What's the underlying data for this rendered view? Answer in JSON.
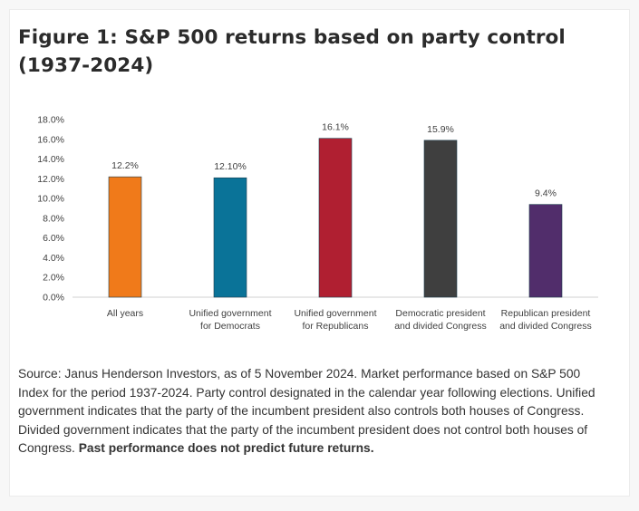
{
  "figure": {
    "title": "Figure 1: S&P 500 returns based on party control (1937-2024)",
    "source_text": "Source: Janus Henderson Investors, as of 5 November 2024. Market performance based on S&P 500 Index for the period 1937-2024. Party control designated in the calendar year following elections. Unified government indicates that the party of the incumbent president also controls both houses of Congress. Divided government indicates that the party of the incumbent president does not control both houses of Congress.",
    "source_emphasis": "Past performance does not predict future returns."
  },
  "chart_data": {
    "type": "bar",
    "categories": [
      [
        "All years"
      ],
      [
        "Unified government",
        "for Democrats"
      ],
      [
        "Unified government",
        "for Republicans"
      ],
      [
        "Democratic president",
        "and divided Congress"
      ],
      [
        "Republican president",
        "and divided Congress"
      ]
    ],
    "values": [
      12.2,
      12.1,
      16.1,
      15.9,
      9.4
    ],
    "data_labels": [
      "12.2%",
      "12.10%",
      "16.1%",
      "15.9%",
      "9.4%"
    ],
    "colors": [
      "#f07a1a",
      "#0a7398",
      "#b01f31",
      "#3f3f3f",
      "#512d6b"
    ],
    "ylim": [
      0,
      18
    ],
    "y_ticks": [
      "0.0%",
      "2.0%",
      "4.0%",
      "6.0%",
      "8.0%",
      "10.0%",
      "12.0%",
      "14.0%",
      "16.0%",
      "18.0%"
    ],
    "grid": false,
    "xlabel": "",
    "ylabel": ""
  }
}
